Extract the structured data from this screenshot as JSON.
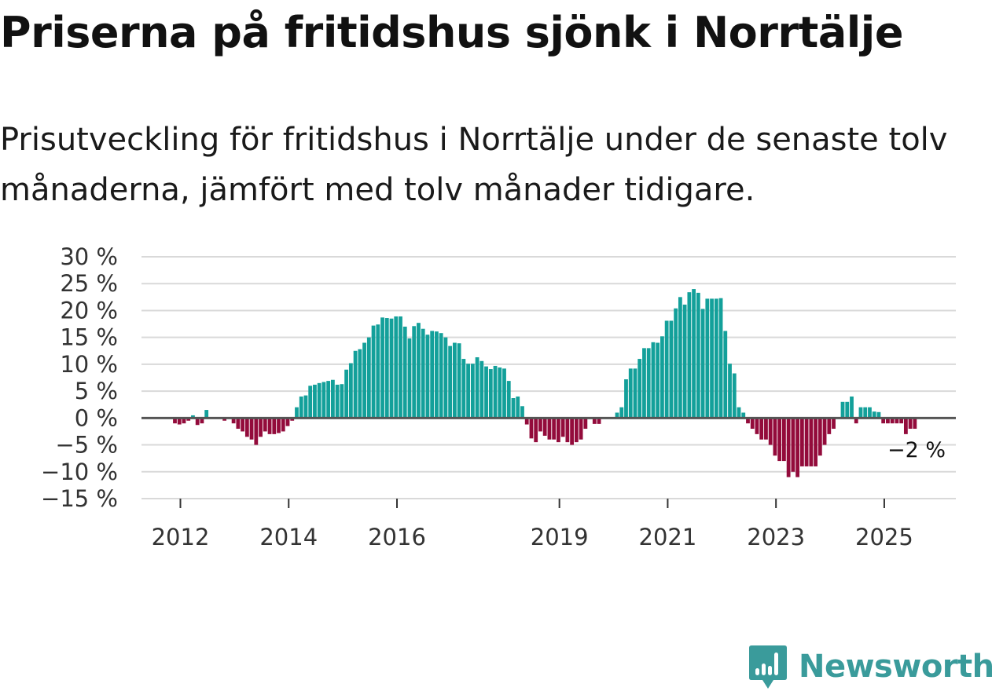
{
  "title": "Priserna på fritidshus sjönk i Norrtälje",
  "subtitle": "Prisutveckling för fritidshus i Norrtälje under de senaste tolv månaderna, jämfört med tolv månader tidigare.",
  "brand": {
    "name": "Newsworthy",
    "logo_icon": "bar-chart-badge-icon"
  },
  "colors": {
    "positive": "#13a09a",
    "negative": "#930b3b",
    "grid": "#d9d9d9",
    "zero_line": "#555555",
    "brand": "#3a9b9b"
  },
  "chart_data": {
    "type": "bar",
    "title": "Priserna på fritidshus sjönk i Norrtälje",
    "xlabel": "",
    "ylabel": "",
    "ylim": [
      -15,
      30
    ],
    "yticks": [
      30,
      25,
      20,
      15,
      10,
      5,
      0,
      -5,
      -10,
      -15
    ],
    "ytick_labels": [
      "30 %",
      "25 %",
      "20 %",
      "15 %",
      "10 %",
      "5 %",
      "0 %",
      "−5 %",
      "−10 %",
      "−15 %"
    ],
    "xticks": [
      {
        "label": "2012",
        "month_index": 0
      },
      {
        "label": "2014",
        "month_index": 24
      },
      {
        "label": "2016",
        "month_index": 48
      },
      {
        "label": "2019",
        "month_index": 84
      },
      {
        "label": "2021",
        "month_index": 108
      },
      {
        "label": "2023",
        "month_index": 132
      },
      {
        "label": "2025",
        "month_index": 156
      }
    ],
    "start": "2012-01",
    "unit": "%",
    "values": [
      -1,
      -1.2,
      -1,
      -0.5,
      0.5,
      -1.3,
      -1,
      1.5,
      0,
      0,
      0,
      -0.5,
      0,
      -1,
      -2,
      -2.5,
      -3.5,
      -4,
      -5,
      -3.5,
      -2.5,
      -3,
      -3,
      -2.8,
      -2.5,
      -1.5,
      -0.5,
      2,
      4,
      4.2,
      6,
      6.2,
      6.5,
      6.7,
      6.9,
      7.1,
      6.2,
      6.3,
      9,
      10.2,
      12.5,
      12.8,
      14,
      15,
      17.2,
      17.4,
      18.7,
      18.6,
      18.5,
      18.9,
      18.9,
      17,
      14.8,
      17.1,
      17.7,
      16.6,
      15.5,
      16.2,
      16.1,
      15.8,
      15,
      13.4,
      14,
      13.9,
      11,
      10.1,
      10.1,
      11.3,
      10.6,
      9.6,
      9.1,
      9.7,
      9.4,
      9.2,
      6.9,
      3.7,
      4,
      2.2,
      -1.2,
      -3.8,
      -4.5,
      -2.5,
      -3.3,
      -4,
      -4,
      -4.5,
      -3.5,
      -4.5,
      -5,
      -4.5,
      -4,
      -2,
      0,
      -1.1,
      -1.1,
      0,
      0,
      0,
      1,
      2,
      7.2,
      9.2,
      9.2,
      11,
      13,
      13,
      14.1,
      14,
      15.2,
      18.1,
      18.1,
      20.4,
      22.5,
      21.1,
      23.4,
      24,
      23.3,
      20.3,
      22.2,
      22.2,
      22.2,
      22.3,
      16.2,
      10.1,
      8.3,
      2,
      1,
      -1,
      -2,
      -3,
      -4,
      -4,
      -5,
      -7,
      -8,
      -8,
      -11,
      -10,
      -11,
      -9,
      -9,
      -9,
      -9,
      -7,
      -5,
      -3,
      -2,
      0,
      3,
      3,
      4,
      -1,
      2,
      2,
      2,
      1.2,
      1.1,
      -1,
      -1,
      -1,
      -1,
      -1,
      -3,
      -2,
      -2
    ],
    "last_value_label": "−2 %"
  }
}
